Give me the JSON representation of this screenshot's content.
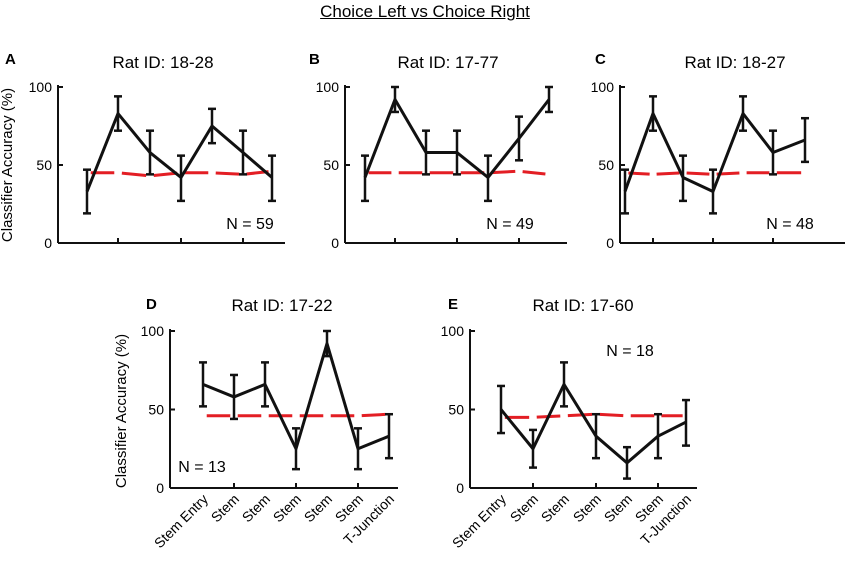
{
  "figure_title": "Choice Left vs Choice Right",
  "colors": {
    "data": "#111111",
    "chance": "#e31e24",
    "axis": "#111111"
  },
  "chart_data": [
    {
      "type": "line",
      "panel": "A",
      "title": "Rat ID: 18-28",
      "annotation": "N = 59",
      "ylabel": "Classifier Accuracy (%)",
      "ylim": [
        0,
        100
      ],
      "yticks": [
        0,
        50,
        100
      ],
      "categories": [],
      "x": [
        1,
        2,
        3,
        4,
        5,
        6,
        7
      ],
      "series": [
        {
          "name": "accuracy",
          "values": [
            33,
            83,
            58,
            42,
            75,
            58,
            42
          ],
          "err_low": [
            19,
            72,
            44,
            27,
            64,
            44,
            27
          ],
          "err_high": [
            47,
            94,
            72,
            56,
            86,
            72,
            56
          ]
        }
      ],
      "chance": [
        45,
        45,
        43,
        45,
        45,
        44,
        46
      ]
    },
    {
      "type": "line",
      "panel": "B",
      "title": "Rat ID: 17-77",
      "annotation": "N = 49",
      "ylabel": "",
      "ylim": [
        0,
        100
      ],
      "yticks": [
        0,
        50,
        100
      ],
      "categories": [],
      "x": [
        1,
        2,
        3,
        4,
        5,
        6,
        7
      ],
      "series": [
        {
          "name": "accuracy",
          "values": [
            42,
            92,
            58,
            58,
            42,
            67,
            92
          ],
          "err_low": [
            27,
            84,
            44,
            44,
            27,
            53,
            84
          ],
          "err_high": [
            56,
            100,
            72,
            72,
            56,
            81,
            100
          ]
        }
      ],
      "chance": [
        45,
        45,
        45,
        45,
        45,
        46,
        44
      ]
    },
    {
      "type": "line",
      "panel": "C",
      "title": "Rat ID: 18-27",
      "annotation": "N = 48",
      "ylabel": "",
      "ylim": [
        0,
        100
      ],
      "yticks": [
        0,
        50,
        100
      ],
      "categories": [],
      "x": [
        1,
        2,
        3,
        4,
        5,
        6,
        7
      ],
      "series": [
        {
          "name": "accuracy",
          "values": [
            33,
            83,
            42,
            33,
            83,
            58,
            66
          ],
          "err_low": [
            19,
            72,
            27,
            19,
            72,
            44,
            52
          ],
          "err_high": [
            47,
            94,
            56,
            47,
            94,
            72,
            80
          ]
        }
      ],
      "chance": [
        45,
        44,
        45,
        44,
        45,
        45,
        45
      ]
    },
    {
      "type": "line",
      "panel": "D",
      "title": "Rat ID: 17-22",
      "annotation": "N = 13",
      "ylabel": "Classifier Accuracy (%)",
      "ylim": [
        0,
        100
      ],
      "yticks": [
        0,
        50,
        100
      ],
      "categories": [
        "Stem Entry",
        "Stem",
        "Stem",
        "Stem",
        "Stem",
        "Stem",
        "T-Junction"
      ],
      "x": [
        1,
        2,
        3,
        4,
        5,
        6,
        7
      ],
      "series": [
        {
          "name": "accuracy",
          "values": [
            66,
            58,
            66,
            25,
            92,
            25,
            33
          ],
          "err_low": [
            52,
            44,
            52,
            12,
            84,
            12,
            19
          ],
          "err_high": [
            80,
            72,
            80,
            38,
            100,
            38,
            47
          ]
        }
      ],
      "chance": [
        46,
        46,
        46,
        46,
        46,
        46,
        47
      ]
    },
    {
      "type": "line",
      "panel": "E",
      "title": "Rat ID: 17-60",
      "annotation": "N = 18",
      "ylabel": "",
      "ylim": [
        0,
        100
      ],
      "yticks": [
        0,
        50,
        100
      ],
      "categories": [
        "Stem Entry",
        "Stem",
        "Stem",
        "Stem",
        "Stem",
        "Stem",
        "T-Junction"
      ],
      "x": [
        1,
        2,
        3,
        4,
        5,
        6,
        7
      ],
      "series": [
        {
          "name": "accuracy",
          "values": [
            50,
            25,
            66,
            33,
            16,
            33,
            42
          ],
          "err_low": [
            35,
            13,
            52,
            19,
            6,
            19,
            27
          ],
          "err_high": [
            65,
            37,
            80,
            47,
            26,
            47,
            56
          ]
        }
      ],
      "chance": [
        45,
        45,
        46,
        47,
        46,
        46,
        46
      ]
    }
  ]
}
